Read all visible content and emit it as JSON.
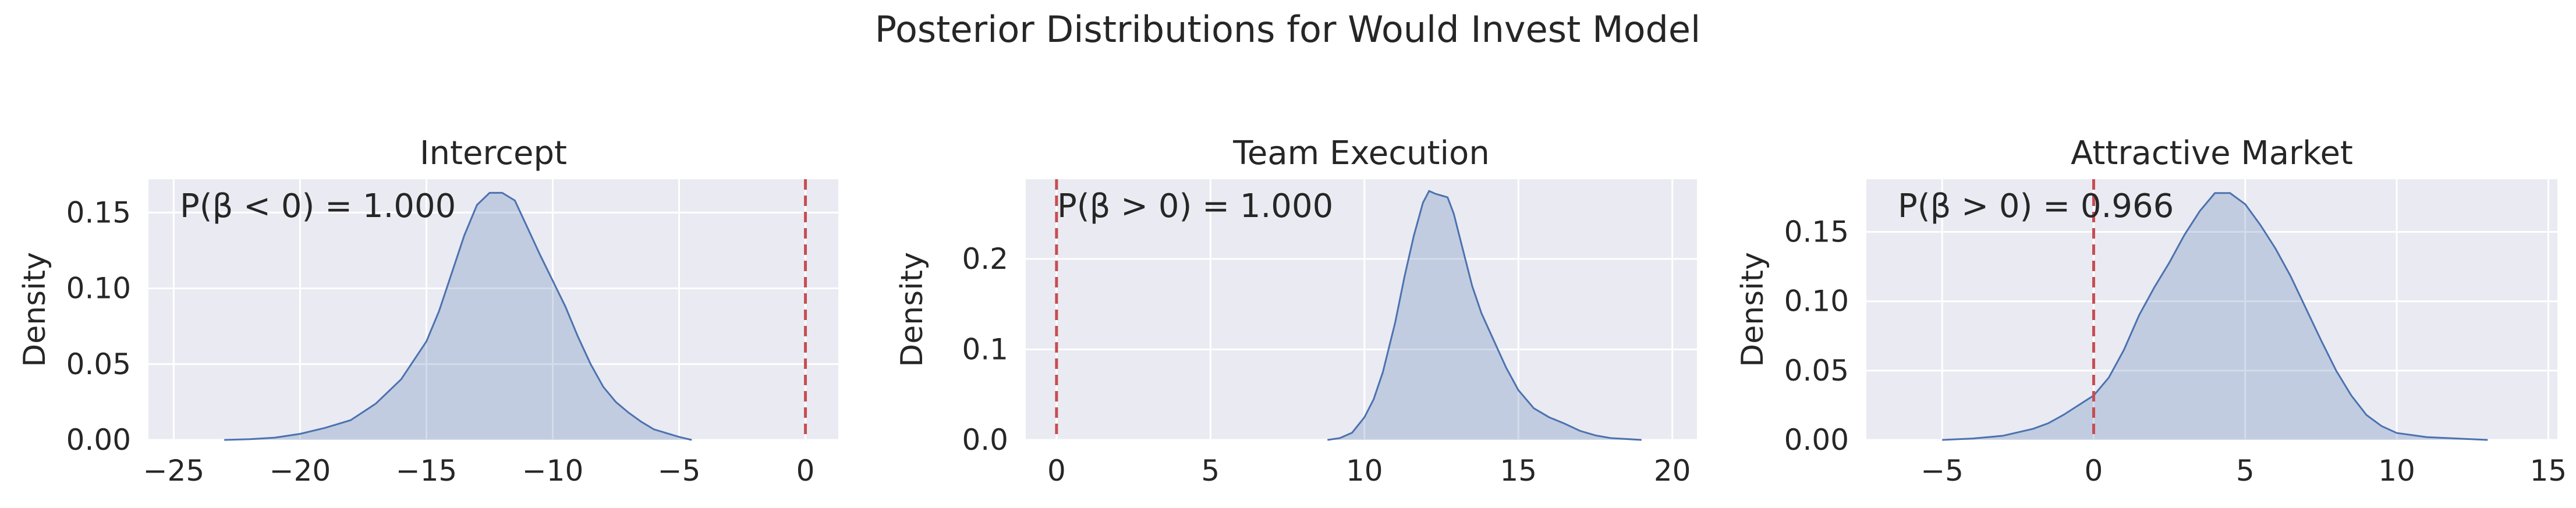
{
  "figure": {
    "title": "Posterior Distributions for Would Invest Model"
  },
  "chart_data": [
    {
      "type": "area",
      "title": "Intercept",
      "xlabel": "",
      "ylabel": "Density",
      "xlim": [
        -26.0,
        1.3
      ],
      "ylim": [
        0,
        0.172
      ],
      "xticks": [
        -25,
        -20,
        -15,
        -10,
        -5,
        0
      ],
      "yticks": [
        0.0,
        0.05,
        0.1,
        0.15
      ],
      "ytick_labels": [
        "0.00",
        "0.05",
        "0.10",
        "0.15"
      ],
      "grid": true,
      "reference_line": 0,
      "annotation": "P(β < 0) = 1.000",
      "x": [
        -23,
        -22,
        -21,
        -20,
        -19,
        -18,
        -17,
        -16,
        -15,
        -14.5,
        -14,
        -13.5,
        -13,
        -12.5,
        -12,
        -11.5,
        -11,
        -10.5,
        -10,
        -9.5,
        -9,
        -8.5,
        -8,
        -7.5,
        -7,
        -6.5,
        -6,
        -5,
        -4.5
      ],
      "density": [
        0,
        0.0005,
        0.0015,
        0.004,
        0.008,
        0.013,
        0.024,
        0.04,
        0.065,
        0.085,
        0.11,
        0.135,
        0.155,
        0.163,
        0.163,
        0.158,
        0.14,
        0.122,
        0.105,
        0.088,
        0.068,
        0.05,
        0.035,
        0.025,
        0.018,
        0.012,
        0.007,
        0.002,
        0
      ]
    },
    {
      "type": "area",
      "title": "Team Execution",
      "xlabel": "",
      "ylabel": "Density",
      "xlim": [
        -1.0,
        20.8
      ],
      "ylim": [
        0,
        0.288
      ],
      "xticks": [
        0,
        5,
        10,
        15,
        20
      ],
      "yticks": [
        0.0,
        0.1,
        0.2
      ],
      "ytick_labels": [
        "0.0",
        "0.1",
        "0.2"
      ],
      "grid": true,
      "reference_line": 0,
      "annotation": "P(β > 0) = 1.000",
      "x": [
        8.8,
        9.2,
        9.6,
        10,
        10.3,
        10.6,
        11,
        11.3,
        11.6,
        11.9,
        12.1,
        12.3,
        12.5,
        12.7,
        12.9,
        13.2,
        13.5,
        13.8,
        14.2,
        14.6,
        15,
        15.5,
        16,
        16.5,
        17,
        17.5,
        18,
        18.5,
        19
      ],
      "density": [
        0,
        0.002,
        0.008,
        0.025,
        0.045,
        0.075,
        0.13,
        0.18,
        0.225,
        0.262,
        0.275,
        0.272,
        0.27,
        0.268,
        0.25,
        0.21,
        0.17,
        0.14,
        0.11,
        0.08,
        0.055,
        0.035,
        0.025,
        0.018,
        0.01,
        0.005,
        0.002,
        0.001,
        0
      ]
    },
    {
      "type": "area",
      "title": "Attractive Market",
      "xlabel": "",
      "ylabel": "Density",
      "xlim": [
        -7.5,
        15.3
      ],
      "ylim": [
        0,
        0.188
      ],
      "xticks": [
        -5,
        0,
        5,
        10,
        15
      ],
      "yticks": [
        0.0,
        0.05,
        0.1,
        0.15
      ],
      "ytick_labels": [
        "0.00",
        "0.05",
        "0.10",
        "0.15"
      ],
      "grid": true,
      "reference_line": 0,
      "annotation": "P(β > 0) = 0.966",
      "x": [
        -5,
        -4,
        -3,
        -2,
        -1.5,
        -1,
        -0.5,
        0,
        0.5,
        1,
        1.5,
        2,
        2.5,
        3,
        3.5,
        4,
        4.5,
        5,
        5.5,
        6,
        6.5,
        7,
        7.5,
        8,
        8.5,
        9,
        9.5,
        10,
        11,
        12,
        13
      ],
      "density": [
        0,
        0.001,
        0.003,
        0.008,
        0.012,
        0.018,
        0.025,
        0.032,
        0.045,
        0.065,
        0.09,
        0.11,
        0.128,
        0.148,
        0.165,
        0.178,
        0.178,
        0.17,
        0.155,
        0.138,
        0.118,
        0.095,
        0.072,
        0.05,
        0.032,
        0.018,
        0.01,
        0.005,
        0.002,
        0.001,
        0
      ]
    }
  ]
}
